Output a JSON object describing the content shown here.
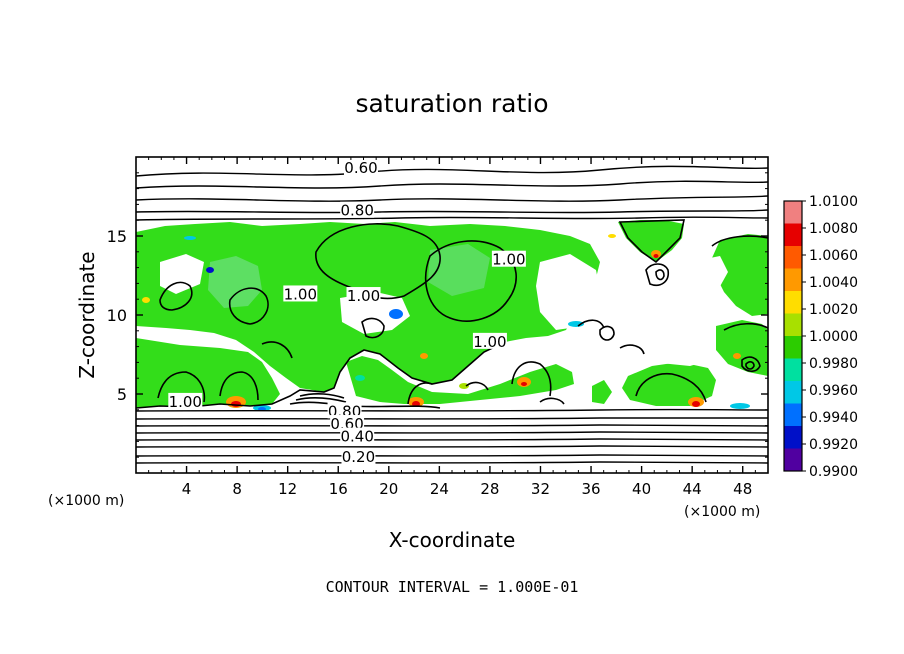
{
  "chart_data": {
    "type": "heatmap",
    "title": "saturation ratio",
    "xlabel": "X-coordinate",
    "ylabel": "Z-coordinate",
    "x_unit_left": "(×1000 m)",
    "x_unit_right": "(×1000 m)",
    "footer": "CONTOUR INTERVAL = 1.000E-01",
    "xlim": [
      0,
      50
    ],
    "ylim": [
      0,
      20
    ],
    "x_ticks": [
      4,
      8,
      12,
      16,
      20,
      24,
      28,
      32,
      36,
      40,
      44,
      48
    ],
    "y_ticks": [
      5,
      10,
      15
    ],
    "colorbar": {
      "min": 0.99,
      "max": 1.01,
      "tick_labels": [
        "1.0100",
        "1.0080",
        "1.0060",
        "1.0040",
        "1.0020",
        "1.0000",
        "0.9980",
        "0.9960",
        "0.9940",
        "0.9920",
        "0.9900"
      ],
      "bands": [
        "#f08080",
        "#e60000",
        "#ff5a00",
        "#ff9900",
        "#ffdd00",
        "#a8e000",
        "#2ccc00",
        "#00e0a0",
        "#00c8e6",
        "#0070ff",
        "#0010c8",
        "#5000a0"
      ]
    },
    "contour_interval": 0.1,
    "contour_labels": [
      {
        "text": "0.60",
        "x": 17.8,
        "z": 19.3
      },
      {
        "text": "0.80",
        "x": 17.5,
        "z": 16.6
      },
      {
        "text": "1.00",
        "x": 13.0,
        "z": 11.3
      },
      {
        "text": "1.00",
        "x": 18.0,
        "z": 11.2
      },
      {
        "text": "1.00",
        "x": 29.5,
        "z": 13.5
      },
      {
        "text": "1.00",
        "x": 28.0,
        "z": 8.3
      },
      {
        "text": "1.00",
        "x": 3.9,
        "z": 4.5
      },
      {
        "text": "0.80",
        "x": 16.5,
        "z": 3.9
      },
      {
        "text": "0.60",
        "x": 16.7,
        "z": 3.1
      },
      {
        "text": "0.40",
        "x": 17.5,
        "z": 2.3
      },
      {
        "text": "0.20",
        "x": 17.6,
        "z": 1.0
      }
    ]
  }
}
